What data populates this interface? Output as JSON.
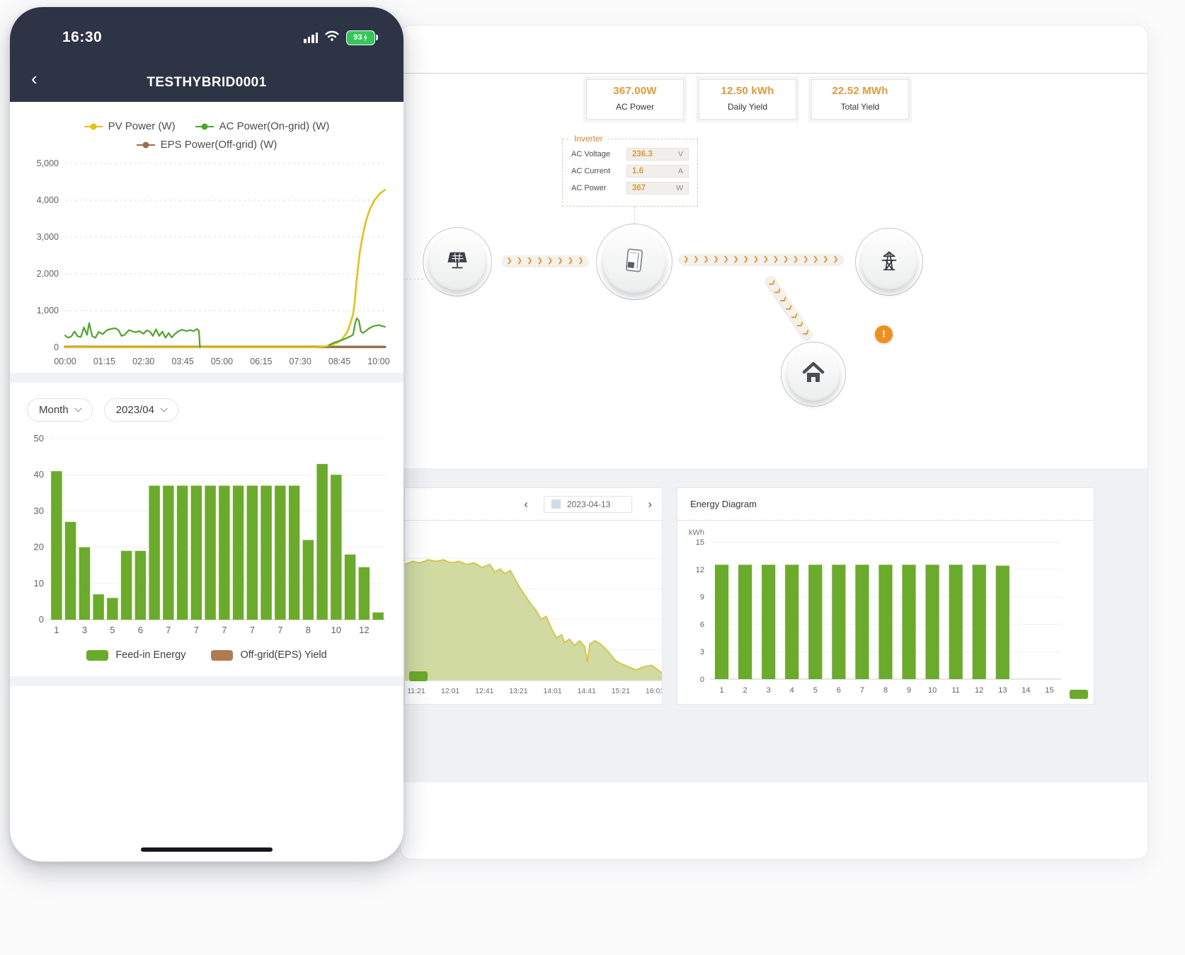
{
  "phone": {
    "status_bar": {
      "time": "16:30",
      "battery_percent": "93"
    },
    "nav": {
      "back": "‹",
      "title": "TESTHYBRID0001"
    },
    "filters": {
      "period": "Month",
      "period_value": "2023/04"
    }
  },
  "desktop": {
    "stat_cards": [
      {
        "value": "367.00W",
        "label": "AC Power"
      },
      {
        "value": "12.50 kWh",
        "label": "Daily Yield"
      },
      {
        "value": "22.52 MWh",
        "label": "Total Yield"
      }
    ],
    "inverter_panel": {
      "title": "Inverter",
      "rows": [
        {
          "label": "AC Voltage",
          "value": "236.3",
          "unit": "V"
        },
        {
          "label": "AC Current",
          "value": "1.6",
          "unit": "A"
        },
        {
          "label": "AC Power",
          "value": "367",
          "unit": "W"
        }
      ]
    },
    "flow": {
      "warning": "!"
    },
    "day_panel": {
      "prev": "‹",
      "date": "2023-04-13",
      "next": "›"
    },
    "energy_panel": {
      "title": "Energy Diagram",
      "unit": "kWh"
    }
  },
  "colors": {
    "pv": "#e2c312",
    "ac": "#4ea52b",
    "eps": "#9c6f4c",
    "bar_green": "#6aab2b",
    "legend_brown": "#b07a52",
    "accent_orange": "#e2993c",
    "navy": "#2d3445",
    "warning": "#f08f1c"
  },
  "chart_data": [
    {
      "id": "phone_power_line",
      "type": "line",
      "x_ticks": [
        "00:00",
        "01:15",
        "02:30",
        "03:45",
        "05:00",
        "06:15",
        "07:30",
        "08:45",
        "10:00"
      ],
      "x_tick_values": [
        0,
        75,
        150,
        225,
        300,
        375,
        450,
        525,
        600
      ],
      "xlim": [
        0,
        615
      ],
      "y_ticks": [
        "0",
        "1,000",
        "2,000",
        "3,000",
        "4,000",
        "5,000"
      ],
      "y_tick_values": [
        0,
        1000,
        2000,
        3000,
        4000,
        5000
      ],
      "ylim": [
        0,
        5000
      ],
      "legend": [
        {
          "name": "PV Power (W)",
          "color": "#e2c312"
        },
        {
          "name": "AC Power(On-grid) (W)",
          "color": "#4ea52b"
        },
        {
          "name": "EPS Power(Off-grid) (W)",
          "color": "#9c6f4c"
        }
      ],
      "series": [
        {
          "name": "EPS Power(Off-grid) (W)",
          "color": "#9c6f4c",
          "segments": [
            [
              [
                0,
                12
              ],
              [
                612,
                12
              ]
            ]
          ]
        },
        {
          "name": "PV Power (W)",
          "color": "#e2c312",
          "segments": [
            [
              [
                0,
                5
              ],
              [
                480,
                5
              ],
              [
                495,
                20
              ],
              [
                508,
                60
              ],
              [
                520,
                120
              ],
              [
                530,
                220
              ],
              [
                540,
                420
              ],
              [
                547,
                700
              ],
              [
                551,
                900
              ],
              [
                554,
                1200
              ],
              [
                557,
                1700
              ],
              [
                560,
                2100
              ],
              [
                564,
                2600
              ],
              [
                569,
                3000
              ],
              [
                575,
                3400
              ],
              [
                583,
                3750
              ],
              [
                592,
                4000
              ],
              [
                602,
                4180
              ],
              [
                612,
                4280
              ]
            ]
          ]
        },
        {
          "name": "AC Power(On-grid) (W)",
          "color": "#4ea52b",
          "segments": [
            [
              [
                0,
                320
              ],
              [
                6,
                260
              ],
              [
                12,
                300
              ],
              [
                18,
                430
              ],
              [
                24,
                300
              ],
              [
                30,
                280
              ],
              [
                36,
                540
              ],
              [
                42,
                340
              ],
              [
                46,
                660
              ],
              [
                52,
                300
              ],
              [
                58,
                260
              ],
              [
                64,
                420
              ],
              [
                72,
                360
              ],
              [
                80,
                470
              ],
              [
                88,
                500
              ],
              [
                96,
                520
              ],
              [
                102,
                470
              ],
              [
                108,
                310
              ],
              [
                114,
                340
              ],
              [
                122,
                470
              ],
              [
                128,
                440
              ],
              [
                134,
                410
              ],
              [
                142,
                440
              ],
              [
                150,
                370
              ],
              [
                156,
                460
              ],
              [
                162,
                430
              ],
              [
                168,
                310
              ],
              [
                174,
                490
              ],
              [
                180,
                310
              ],
              [
                186,
                430
              ],
              [
                192,
                260
              ],
              [
                198,
                390
              ],
              [
                204,
                270
              ],
              [
                210,
                360
              ],
              [
                216,
                430
              ],
              [
                224,
                480
              ],
              [
                232,
                440
              ],
              [
                240,
                470
              ],
              [
                246,
                440
              ],
              [
                252,
                500
              ],
              [
                256,
                450
              ],
              [
                258,
                0
              ]
            ],
            [
              [
                505,
                60
              ],
              [
                515,
                130
              ],
              [
                524,
                170
              ],
              [
                532,
                210
              ],
              [
                540,
                260
              ],
              [
                546,
                300
              ],
              [
                551,
                340
              ],
              [
                555,
                650
              ],
              [
                558,
                790
              ],
              [
                562,
                730
              ],
              [
                566,
                430
              ],
              [
                570,
                390
              ],
              [
                576,
                450
              ],
              [
                582,
                520
              ],
              [
                590,
                575
              ],
              [
                600,
                605
              ],
              [
                612,
                560
              ]
            ]
          ]
        }
      ]
    },
    {
      "id": "phone_month_bars",
      "type": "bar",
      "y_ticks": [
        "0",
        "10",
        "20",
        "30",
        "40",
        "50"
      ],
      "y_tick_values": [
        0,
        10,
        20,
        30,
        40,
        50
      ],
      "ylim": [
        0,
        50
      ],
      "values": [
        41,
        27,
        20,
        7,
        6,
        19,
        19,
        37,
        37,
        37,
        37,
        37,
        37,
        37,
        37,
        37,
        37,
        37,
        22,
        43,
        40,
        18,
        14.5,
        2
      ],
      "x_labels": [
        "1",
        "3",
        "5",
        "6",
        "7",
        "7",
        "7",
        "7",
        "7",
        "8",
        "10",
        "12"
      ],
      "label_every": 2,
      "color": "#6aab2b",
      "legend": [
        {
          "name": "Feed-in Energy",
          "color": "#6aab2b"
        },
        {
          "name": "Off-grid(EPS) Yield",
          "color": "#b07a52"
        }
      ]
    },
    {
      "id": "desktop_day_area",
      "type": "area",
      "x_labels": [
        "11:21",
        "12:01",
        "12:41",
        "13:21",
        "14:01",
        "14:41",
        "15:21",
        "16:01"
      ],
      "ylim": [
        0,
        100
      ],
      "fill": "#cdd89c",
      "stroke": "#d6c84b",
      "points": [
        [
          0,
          76
        ],
        [
          3,
          78
        ],
        [
          6,
          77
        ],
        [
          9,
          79
        ],
        [
          12,
          78
        ],
        [
          15,
          79
        ],
        [
          18,
          77
        ],
        [
          21,
          78
        ],
        [
          24,
          76
        ],
        [
          27,
          77
        ],
        [
          30,
          74
        ],
        [
          33,
          76
        ],
        [
          35,
          71
        ],
        [
          37,
          73
        ],
        [
          39,
          70
        ],
        [
          41,
          72
        ],
        [
          43,
          66
        ],
        [
          45,
          60
        ],
        [
          47,
          55
        ],
        [
          49,
          50
        ],
        [
          51,
          46
        ],
        [
          53,
          40
        ],
        [
          55,
          42
        ],
        [
          57,
          34
        ],
        [
          59,
          28
        ],
        [
          61,
          30
        ],
        [
          62,
          25
        ],
        [
          64,
          27
        ],
        [
          66,
          23
        ],
        [
          68,
          26
        ],
        [
          70,
          22
        ],
        [
          71,
          12
        ],
        [
          72,
          24
        ],
        [
          74,
          26
        ],
        [
          76,
          24
        ],
        [
          78,
          21
        ],
        [
          80,
          17
        ],
        [
          82,
          13
        ],
        [
          84,
          11
        ],
        [
          87,
          9
        ],
        [
          90,
          7
        ],
        [
          93,
          9
        ],
        [
          96,
          10
        ],
        [
          100,
          5
        ]
      ]
    },
    {
      "id": "energy_diagram",
      "type": "bar",
      "title": "Energy Diagram",
      "unit": "kWh",
      "y_ticks": [
        "0",
        "3",
        "6",
        "9",
        "12",
        "15"
      ],
      "y_tick_values": [
        0,
        3,
        6,
        9,
        12,
        15
      ],
      "ylim": [
        0,
        15
      ],
      "values": [
        12.5,
        12.5,
        12.5,
        12.5,
        12.5,
        12.5,
        12.5,
        12.5,
        12.5,
        12.5,
        12.5,
        12.5,
        12.4,
        null,
        null
      ],
      "x_labels": [
        "1",
        "2",
        "3",
        "4",
        "5",
        "6",
        "7",
        "8",
        "9",
        "10",
        "11",
        "12",
        "13",
        "14",
        "15"
      ],
      "label_every": 1,
      "color": "#6aab2b"
    }
  ]
}
